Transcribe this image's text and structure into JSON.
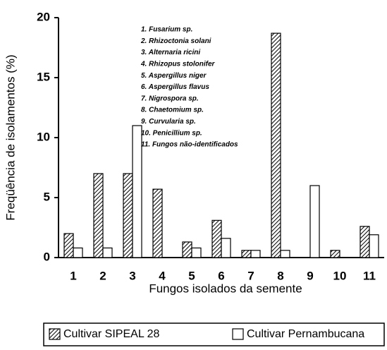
{
  "chart_data": {
    "type": "bar",
    "xlabel": "Fungos isolados da semente",
    "ylabel": "Freqüência de isolamentos (%)",
    "categories": [
      "1",
      "2",
      "3",
      "4",
      "5",
      "6",
      "7",
      "8",
      "9",
      "10",
      "11"
    ],
    "series": [
      {
        "name": "Cultivar SIPEAL 28",
        "color": "#000000",
        "pattern": "hatch",
        "values": [
          2.0,
          7.0,
          7.0,
          5.7,
          1.3,
          3.1,
          0.6,
          18.7,
          0,
          0.6,
          2.6
        ]
      },
      {
        "name": "Cultivar Pernambucana",
        "color": "#ffffff",
        "values": [
          0.8,
          0.8,
          11.0,
          0,
          0.8,
          1.6,
          0.6,
          0.6,
          6.0,
          0,
          1.9
        ]
      }
    ],
    "annotations": [
      "1. Fusarium sp.",
      "2. Rhizoctonia solani",
      "3. Alternaria ricini",
      "4. Rhizopus stolonifer",
      "5. Aspergillus niger",
      "6. Aspergillus flavus",
      "7. Nigrospora sp.",
      "8. Chaetomium sp.",
      "9. Curvularia sp.",
      "10. Penicillium sp.",
      "11. Fungos não-identificados"
    ],
    "ylim": [
      0,
      20
    ],
    "yticks": [
      0,
      5,
      10,
      15,
      20
    ],
    "grid": false,
    "legend": "bottom"
  }
}
